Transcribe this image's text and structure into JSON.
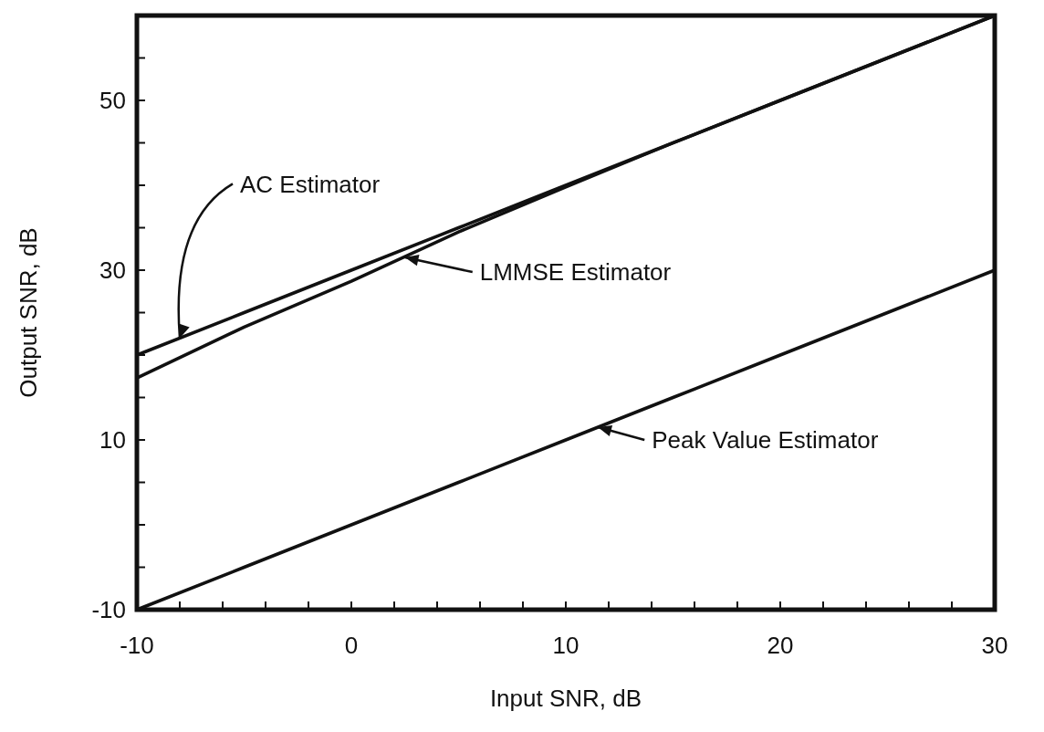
{
  "chart_data": {
    "type": "line",
    "xlabel": "Input SNR, dB",
    "ylabel": "Output SNR, dB",
    "xlim": [
      -10,
      30
    ],
    "ylim": [
      -10,
      60
    ],
    "xticks": [
      -10,
      {
        "value": -8,
        "label": null
      },
      {
        "value": -6,
        "label": null
      },
      {
        "value": -4,
        "label": null
      },
      {
        "value": -2,
        "label": null
      },
      0,
      {
        "value": 2,
        "label": null
      },
      {
        "value": 4,
        "label": null
      },
      {
        "value": 6,
        "label": null
      },
      {
        "value": 8,
        "label": null
      },
      10,
      {
        "value": 12,
        "label": null
      },
      {
        "value": 14,
        "label": null
      },
      {
        "value": 16,
        "label": null
      },
      {
        "value": 18,
        "label": null
      },
      20,
      {
        "value": 22,
        "label": null
      },
      {
        "value": 24,
        "label": null
      },
      {
        "value": 26,
        "label": null
      },
      {
        "value": 28,
        "label": null
      },
      30
    ],
    "yticks": [
      -10,
      {
        "value": -5,
        "label": null
      },
      {
        "value": 0,
        "label": null
      },
      {
        "value": 5,
        "label": null
      },
      10,
      {
        "value": 15,
        "label": null
      },
      {
        "value": 20,
        "label": null
      },
      {
        "value": 25,
        "label": null
      },
      30,
      {
        "value": 35,
        "label": null
      },
      {
        "value": 40,
        "label": null
      },
      {
        "value": 45,
        "label": null
      },
      50,
      {
        "value": 55,
        "label": null
      },
      {
        "value": 60,
        "label": null
      }
    ],
    "x": [
      -10,
      -5,
      0,
      5,
      10,
      15,
      20,
      30
    ],
    "series": [
      {
        "color": "#111111",
        "values": [
          20,
          25,
          30,
          35,
          40,
          45,
          50,
          60
        ]
      },
      {
        "color": "#111111",
        "values": [
          17.3,
          23.3,
          28.7,
          34.5,
          39.8,
          45,
          50,
          60
        ]
      },
      {
        "color": "#111111",
        "values": [
          -10,
          -5,
          0,
          5,
          10,
          15,
          20,
          30
        ]
      }
    ],
    "annotations": [
      {
        "text": "AC Estimator",
        "x": -8,
        "y": 22
      },
      {
        "text": "LMMSE Estimator",
        "x": 2.5,
        "y": 31.5
      },
      {
        "text": "Peak Value Estimator",
        "x": 11.5,
        "y": 11.5
      }
    ],
    "grid": false,
    "marker": "none",
    "line_style": "solid"
  }
}
